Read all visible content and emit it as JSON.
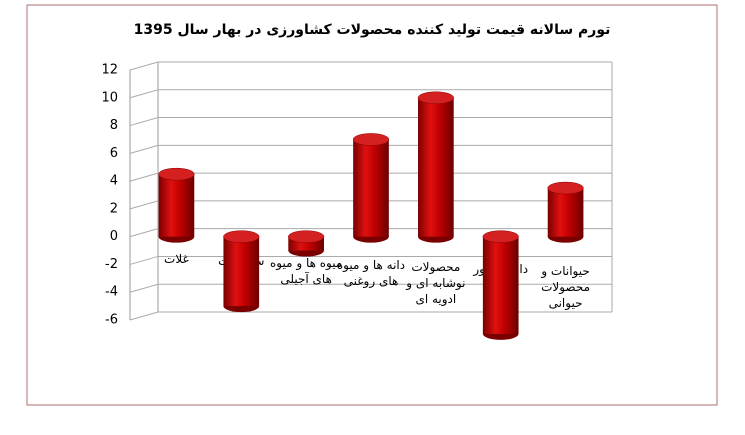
{
  "chart_data": {
    "type": "bar",
    "title": "تورم سالانه قیمت تولید کننده محصولات کشاورزی در بهار سال 1395",
    "categories": [
      "غلات",
      "سبزیجات",
      "میوه ها و میوه های آجیلی",
      "دانه ها و میوه های روغنی",
      "محصولات نوشابه ای و ادویه ای",
      "دام و طیور",
      "حیوانات و محصولات حیوانی"
    ],
    "values": [
      4.5,
      -5,
      -1,
      7,
      10,
      -7,
      3.5
    ],
    "color": "#c00000",
    "ylim": [
      -6,
      12
    ],
    "yticks": [
      -6,
      -4,
      -2,
      0,
      2,
      4,
      6,
      8,
      10,
      12
    ],
    "grid": true
  }
}
